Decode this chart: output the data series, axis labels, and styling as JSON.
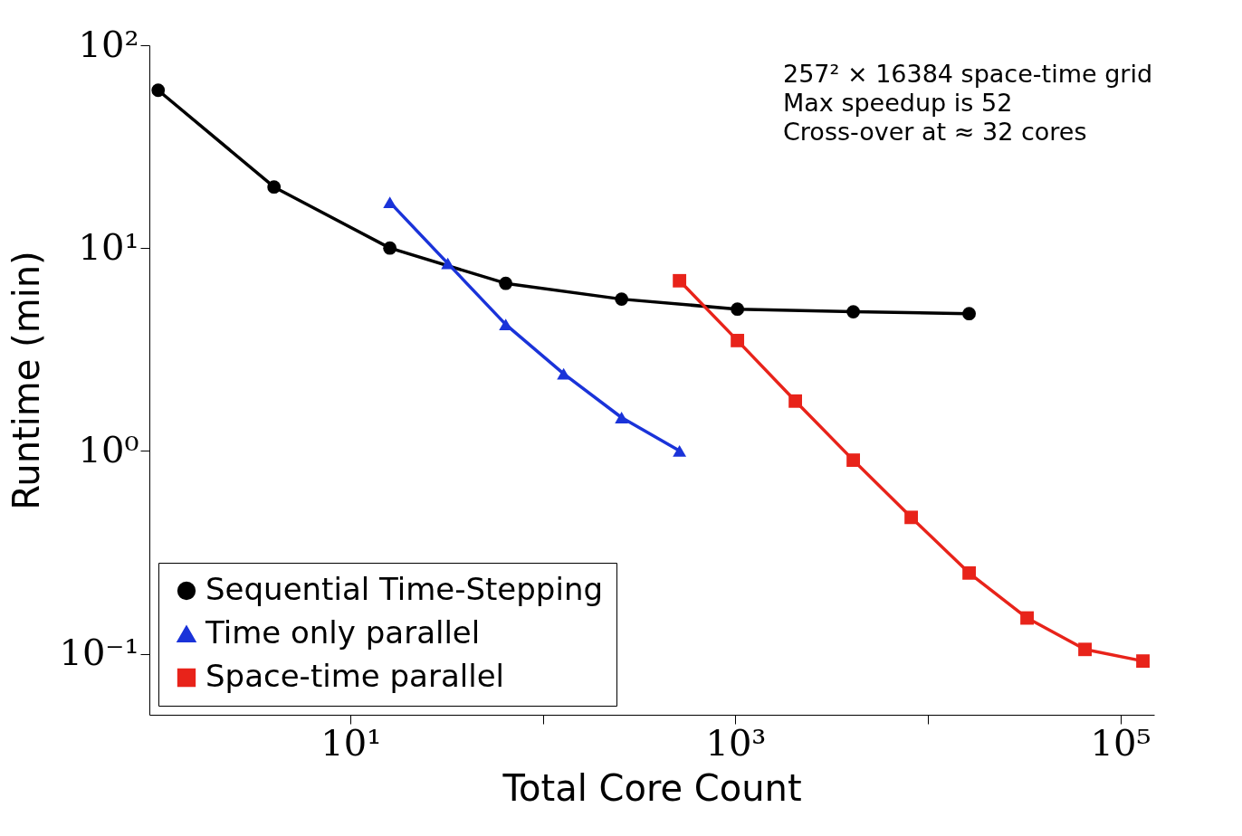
{
  "chart_data": {
    "type": "line",
    "xlabel": "Total Core Count",
    "ylabel": "Runtime (min)",
    "log": "xy",
    "grid": false,
    "legend": "bottom left",
    "xlim": [
      0.9,
      150000
    ],
    "xticks": [
      {
        "value": 10,
        "label": "10¹"
      },
      {
        "value": 100,
        "label": null
      },
      {
        "value": 1000,
        "label": "10³"
      },
      {
        "value": 10000,
        "label": null
      },
      {
        "value": 100000,
        "label": "10⁵"
      }
    ],
    "ylim": [
      0.05,
      100
    ],
    "yticks": [
      {
        "value": 0.1,
        "label": "10⁻¹"
      },
      {
        "value": 1,
        "label": "10⁰"
      },
      {
        "value": 10,
        "label": "10¹"
      },
      {
        "value": 100,
        "label": "10²"
      }
    ],
    "annotations": [
      "257² × 16384 space-time grid",
      "Max speedup is 52",
      "Cross-over at ≈ 32 cores"
    ],
    "series": [
      {
        "name": "Sequential Time-Stepping",
        "color": "#000000",
        "marker": "circle",
        "x": [
          1,
          4,
          16,
          64,
          256,
          1024,
          4096,
          16384
        ],
        "values": [
          60,
          20,
          10,
          6.7,
          5.6,
          5.0,
          4.85,
          4.75
        ]
      },
      {
        "name": "Time only parallel",
        "color": "#1a33d9",
        "marker": "triangle",
        "x": [
          16,
          32,
          64,
          128,
          256,
          512
        ],
        "values": [
          16.8,
          8.4,
          4.2,
          2.4,
          1.46,
          1.0
        ]
      },
      {
        "name": "Space-time parallel",
        "color": "#e8231a",
        "marker": "square",
        "x": [
          512,
          1024,
          2048,
          4096,
          8192,
          16384,
          32768,
          65536,
          131072
        ],
        "values": [
          6.9,
          3.5,
          1.76,
          0.9,
          0.47,
          0.25,
          0.15,
          0.105,
          0.092
        ]
      }
    ]
  }
}
